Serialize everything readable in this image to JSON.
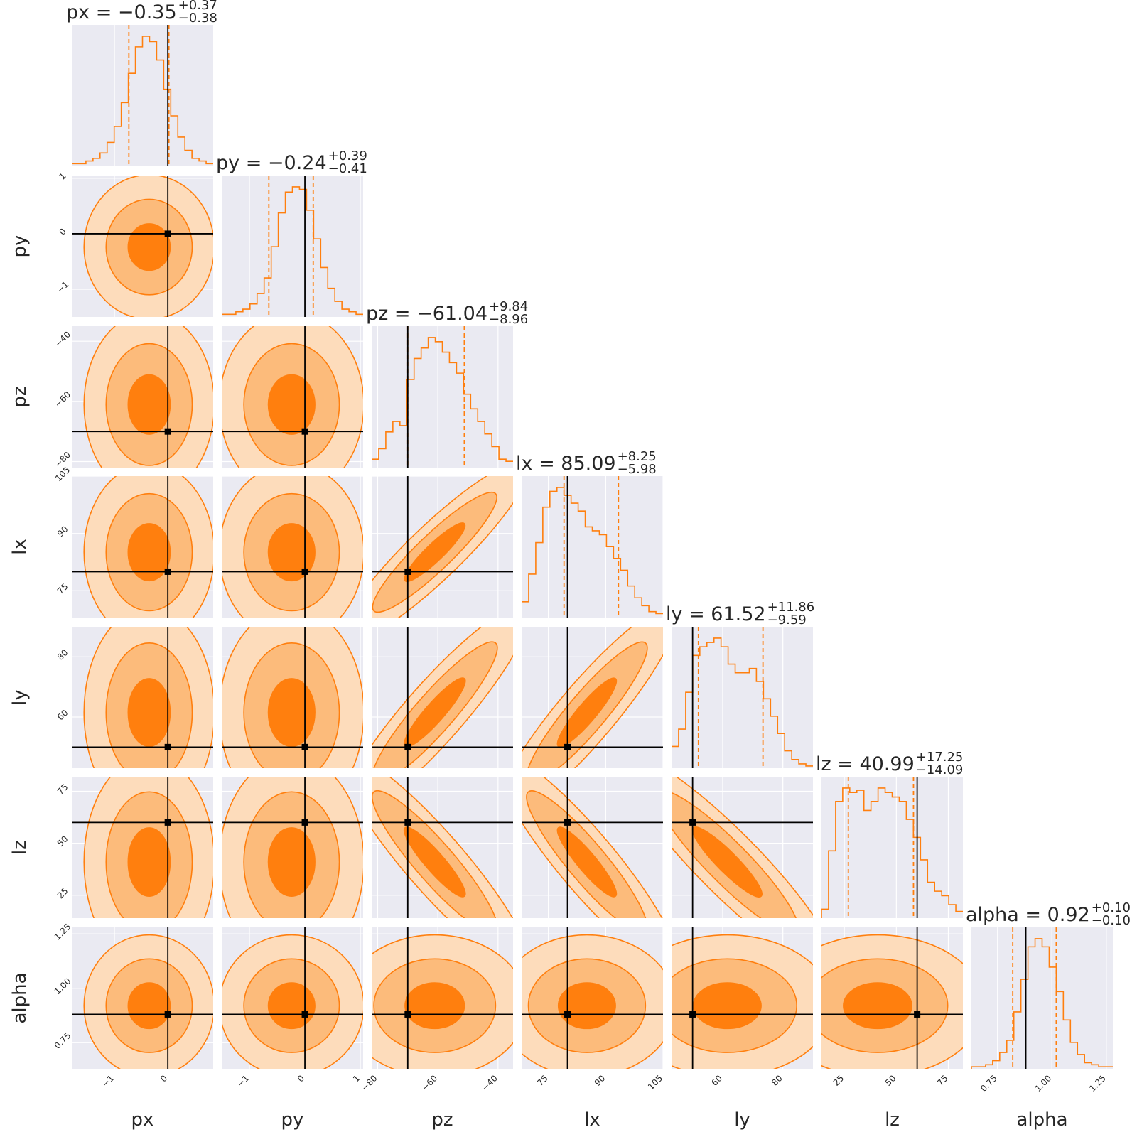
{
  "chart_data": {
    "type": "corner",
    "parameters": [
      "px",
      "py",
      "pz",
      "lx",
      "ly",
      "lz",
      "alpha"
    ],
    "axis_labels": [
      "px",
      "py",
      "pz",
      "lx",
      "ly",
      "lz",
      "alpha"
    ],
    "titles": [
      {
        "param": "px",
        "median": "−0.35",
        "plus": "+0.37",
        "minus": "−0.38"
      },
      {
        "param": "py",
        "median": "−0.24",
        "plus": "+0.39",
        "minus": "−0.41"
      },
      {
        "param": "pz",
        "median": "−61.04",
        "plus": "+9.84",
        "minus": "−8.96"
      },
      {
        "param": "lx",
        "median": "85.09",
        "plus": "+8.25",
        "minus": "−5.98"
      },
      {
        "param": "ly",
        "median": "61.52",
        "plus": "+11.86",
        "minus": "−9.59"
      },
      {
        "param": "lz",
        "median": "40.99",
        "plus": "+17.25",
        "minus": "−14.09"
      },
      {
        "param": "alpha",
        "median": "0.92",
        "plus": "+0.10",
        "minus": "−0.10"
      }
    ],
    "ranges": [
      [
        -1.8,
        0.85
      ],
      [
        -1.5,
        1.05
      ],
      [
        -82,
        -35
      ],
      [
        68,
        105
      ],
      [
        43,
        90
      ],
      [
        14,
        82
      ],
      [
        0.63,
        1.28
      ]
    ],
    "ticks": [
      [
        -1,
        0
      ],
      [
        -1,
        0,
        1
      ],
      [
        -80,
        -60,
        -40
      ],
      [
        75,
        90,
        105
      ],
      [
        60,
        80
      ],
      [
        25,
        50,
        75
      ],
      [
        0.75,
        1.0,
        1.25
      ]
    ],
    "tick_labels": [
      [
        "−1",
        "0"
      ],
      [
        "−1",
        "0",
        "1"
      ],
      [
        "−80",
        "−60",
        "−40"
      ],
      [
        "75",
        "90",
        "105"
      ],
      [
        "60",
        "80"
      ],
      [
        "25",
        "50",
        "75"
      ],
      [
        "0.75",
        "1.00",
        "1.25"
      ]
    ],
    "truth_values": [
      0.0,
      0.0,
      -70.0,
      80.0,
      50.0,
      60.0,
      0.88
    ],
    "quantiles": [
      [
        -0.73,
        -0.35,
        0.02
      ],
      [
        -0.65,
        -0.24,
        0.15
      ],
      [
        -70.0,
        -61.04,
        -51.2
      ],
      [
        79.1,
        85.09,
        93.34
      ],
      [
        51.93,
        61.52,
        73.38
      ],
      [
        26.9,
        40.99,
        58.24
      ],
      [
        0.82,
        0.92,
        1.02
      ]
    ],
    "histograms": [
      [
        1,
        1,
        2,
        3,
        5,
        9,
        15,
        24,
        35,
        45,
        49,
        47,
        40,
        29,
        19,
        11,
        6,
        3,
        2,
        1
      ],
      [
        1,
        1,
        2,
        3,
        5,
        9,
        15,
        27,
        40,
        48,
        50,
        49,
        41,
        30,
        19,
        11,
        6,
        3,
        2,
        1
      ],
      [
        4,
        9,
        17,
        22,
        20,
        42,
        52,
        57,
        62,
        60,
        55,
        50,
        45,
        35,
        28,
        22,
        16,
        10,
        4,
        3
      ],
      [
        8,
        22,
        38,
        56,
        64,
        66,
        62,
        58,
        54,
        46,
        44,
        42,
        36,
        30,
        24,
        16,
        10,
        6,
        3,
        2
      ],
      [
        10,
        18,
        35,
        52,
        56,
        58,
        60,
        56,
        48,
        44,
        44,
        46,
        40,
        32,
        24,
        16,
        8,
        4,
        2,
        1
      ],
      [
        4,
        30,
        52,
        58,
        56,
        57,
        48,
        52,
        58,
        56,
        54,
        52,
        44,
        36,
        26,
        16,
        12,
        10,
        6,
        3
      ],
      [
        1,
        1,
        2,
        4,
        8,
        14,
        28,
        44,
        60,
        64,
        60,
        50,
        38,
        24,
        13,
        7,
        3,
        2,
        1,
        1
      ]
    ],
    "covariance_rho": {
      "2-3": 0.94,
      "2-4": 0.94,
      "3-4": 0.93,
      "2-5": -0.94,
      "3-5": -0.93,
      "4-5": -0.94
    },
    "contour_levels": [
      "1-sigma",
      "2-sigma",
      "3-sigma"
    ],
    "colors": {
      "panel_bg": "#eaeaf2",
      "grid": "#ffffff",
      "hist": "#ff7f0e",
      "fill_outer": "#fddcbb",
      "fill_mid": "#fcbb7b",
      "fill_inner": "#ff7f0e",
      "truth": "#000000",
      "text": "#262626"
    }
  }
}
